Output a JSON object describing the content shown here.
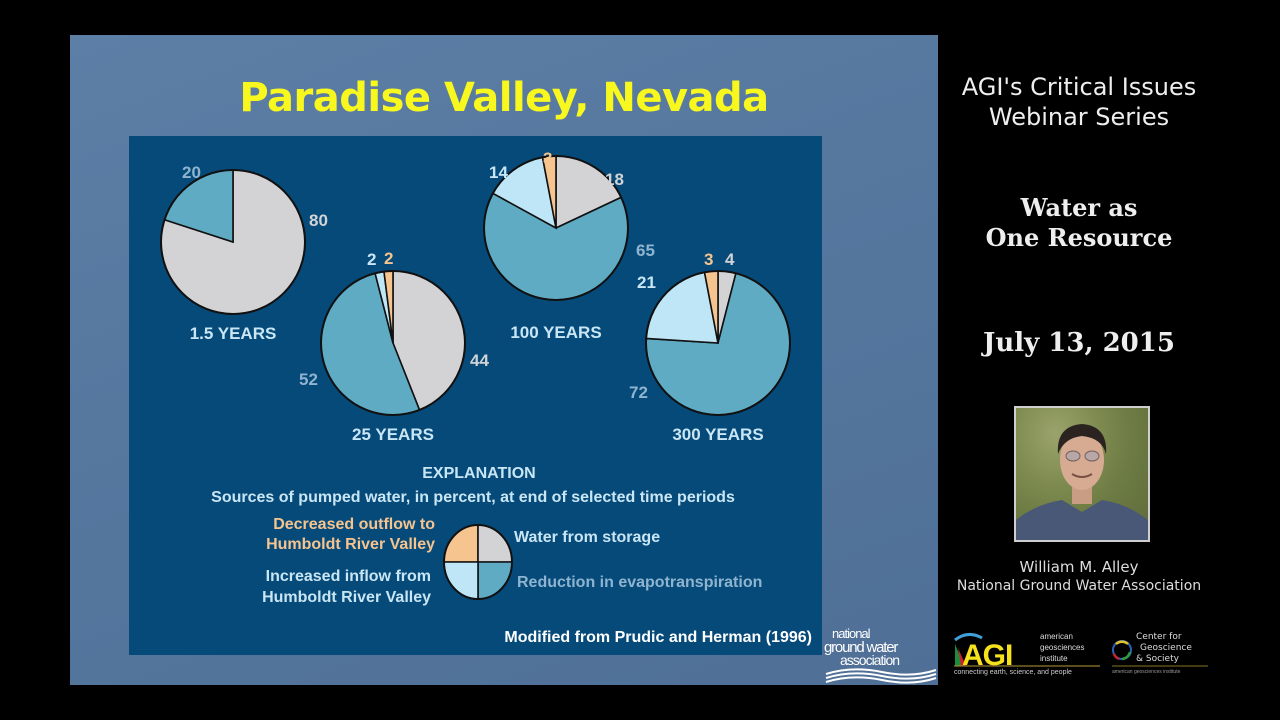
{
  "slide": {
    "title": "Paradise Valley, Nevada",
    "source_note": "Modified from Prudic and Herman (1996)",
    "logo_ngwa": {
      "line1": "national",
      "line2": "ground water",
      "line3": "association"
    }
  },
  "chart_data": {
    "type": "pie",
    "title": "Paradise Valley, Nevada",
    "subtitle": "Sources of pumped water, in percent, at end of selected time periods",
    "legend_title": "EXPLANATION",
    "categories": [
      "Water from storage",
      "Reduction in evapotranspiration",
      "Increased inflow from Humboldt River Valley",
      "Decreased outflow to Humboldt River Valley"
    ],
    "colors": {
      "Water from storage": "#d3d3d5",
      "Reduction in evapotranspiration": "#5fabc4",
      "Increased inflow from Humboldt River Valley": "#bfe6f6",
      "Decreased outflow to Humboldt River Valley": "#f6c48f"
    },
    "pies": [
      {
        "label": "1.5 YEARS",
        "values": {
          "Water from storage": 80,
          "Reduction in evapotranspiration": 20,
          "Increased inflow from Humboldt River Valley": 0,
          "Decreased outflow to Humboldt River Valley": 0
        }
      },
      {
        "label": "25 YEARS",
        "values": {
          "Water from storage": 44,
          "Reduction in evapotranspiration": 52,
          "Increased inflow from Humboldt River Valley": 2,
          "Decreased outflow to Humboldt River Valley": 2
        }
      },
      {
        "label": "100 YEARS",
        "values": {
          "Water from storage": 18,
          "Reduction in evapotranspiration": 65,
          "Increased inflow from Humboldt River Valley": 14,
          "Decreased outflow to Humboldt River Valley": 3
        }
      },
      {
        "label": "300 YEARS",
        "values": {
          "Water from storage": 4,
          "Reduction in evapotranspiration": 72,
          "Increased inflow from Humboldt River Valley": 21,
          "Decreased outflow to Humboldt River Valley": 3
        }
      }
    ],
    "legend": [
      {
        "label_lines": [
          "Decreased outflow to",
          "Humboldt River Valley"
        ],
        "color": "#f6c48f"
      },
      {
        "label_lines": [
          "Water from storage"
        ],
        "color": "#d3d3d5"
      },
      {
        "label_lines": [
          "Increased inflow from",
          "Humboldt River Valley"
        ],
        "color": "#bfe6f6"
      },
      {
        "label_lines": [
          "Reduction in evapotranspiration"
        ],
        "color": "#5fabc4"
      }
    ]
  },
  "sidebar": {
    "series_line1": "AGI's Critical Issues",
    "series_line2": "Webinar Series",
    "topic_line1": "Water as",
    "topic_line2": "One Resource",
    "date": "July 13, 2015",
    "speaker_name": "William M. Alley",
    "speaker_org": "National Ground Water Association",
    "logo_agi": {
      "mark": "AGI",
      "line1": "american",
      "line2": "geosciences",
      "line3": "institute",
      "tagline": "connecting earth, science, and people"
    },
    "logo_cgs": {
      "line1": "Center for",
      "line2": "Geoscience",
      "line3": "& Society",
      "tagline": "american geosciences institute"
    }
  },
  "colors": {
    "title_yellow": "#f8f81e",
    "panel_blue": "#064a7a",
    "slide_blue": "#56789f",
    "label_light": "#c9e6f4",
    "label_steel": "#8fb4cf",
    "label_orange": "#f6c48f"
  }
}
